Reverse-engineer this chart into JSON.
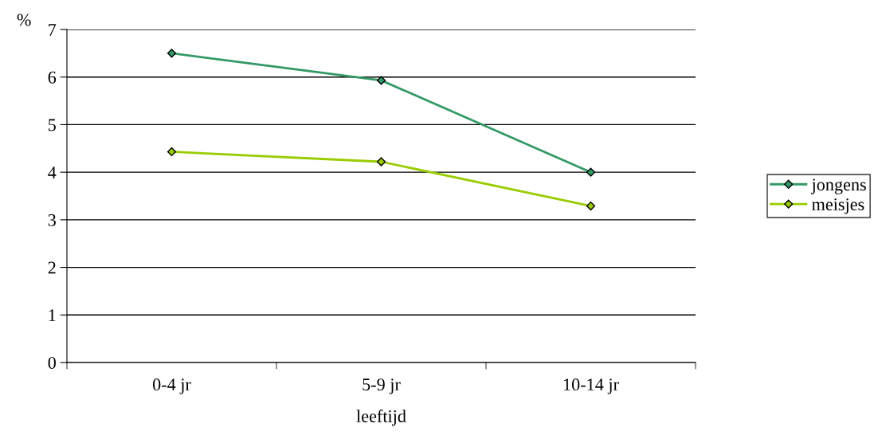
{
  "chart_data": {
    "type": "line",
    "ylabel": "%",
    "xlabel": "leeftijd",
    "categories": [
      "0-4 jr",
      "5-9 jr",
      "10-14 jr"
    ],
    "series": [
      {
        "name": "jongens",
        "color": "#339966",
        "values": [
          6.5,
          5.93,
          4.0
        ]
      },
      {
        "name": "meisjes",
        "color": "#99cc00",
        "values": [
          4.43,
          4.22,
          3.29
        ]
      }
    ],
    "ylim": [
      0,
      7
    ],
    "yticks": [
      0,
      1,
      2,
      3,
      4,
      5,
      6,
      7
    ],
    "grid": "y",
    "legend": "right",
    "marker": "diamond",
    "line_style": "solid"
  }
}
